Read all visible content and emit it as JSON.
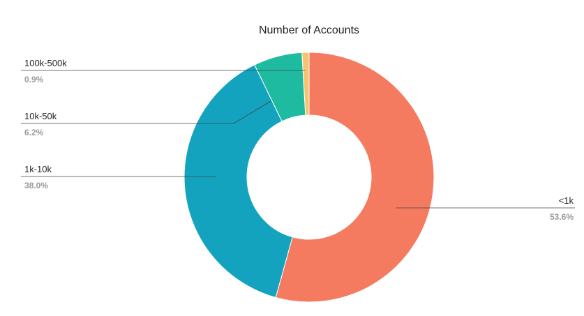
{
  "chart_data": {
    "type": "pie",
    "donut": true,
    "title": "Number of Accounts",
    "slices": [
      {
        "label": "<1k",
        "value": 53.6,
        "value_label": "53.6%",
        "color": "#F47B5F"
      },
      {
        "label": "1k-10k",
        "value": 38.0,
        "value_label": "38.0%",
        "color": "#13A3BE"
      },
      {
        "label": "10k-50k",
        "value": 6.2,
        "value_label": "6.2%",
        "color": "#1FBBA0"
      },
      {
        "label": "100k-500k",
        "value": 0.9,
        "value_label": "0.9%",
        "color": "#F7C36E"
      }
    ],
    "legend": "none"
  }
}
